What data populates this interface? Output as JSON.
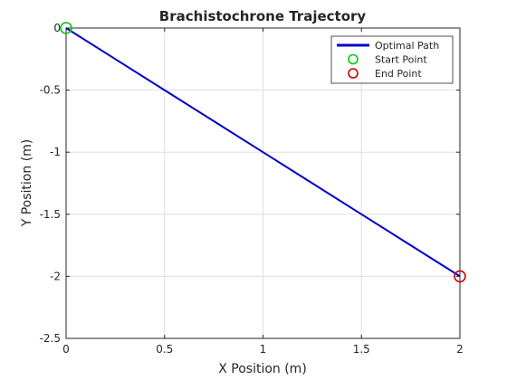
{
  "chart_data": {
    "type": "line",
    "title": "Brachistochrone Trajectory",
    "xlabel": "X Position (m)",
    "ylabel": "Y Position (m)",
    "xlim": [
      0,
      2
    ],
    "ylim": [
      -2.5,
      0
    ],
    "xticks": [
      0,
      0.5,
      1,
      1.5,
      2
    ],
    "xtick_labels": [
      "0",
      "0.5",
      "1",
      "1.5",
      "2"
    ],
    "yticks": [
      0,
      -0.5,
      -1,
      -1.5,
      -2,
      -2.5
    ],
    "ytick_labels": [
      "0",
      "-0.5",
      "-1",
      "-1.5",
      "-2",
      "-2.5"
    ],
    "grid": true,
    "legend_location": "top-right",
    "series": [
      {
        "name": "Optimal Path",
        "kind": "line",
        "color": "#0000c8",
        "x": [
          0,
          0.25,
          0.5,
          0.75,
          1,
          1.25,
          1.5,
          1.75,
          2
        ],
        "y": [
          0,
          -0.25,
          -0.5,
          -0.75,
          -1,
          -1.25,
          -1.5,
          -1.75,
          -2
        ]
      },
      {
        "name": "Start Point",
        "kind": "marker",
        "color": "#00cc00",
        "x": [
          0
        ],
        "y": [
          0
        ]
      },
      {
        "name": "End Point",
        "kind": "marker",
        "color": "#cc0000",
        "x": [
          2
        ],
        "y": [
          -2
        ]
      }
    ]
  }
}
